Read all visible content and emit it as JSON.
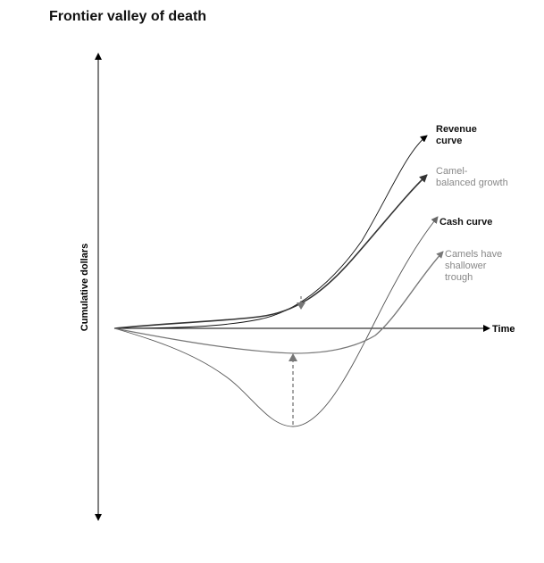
{
  "title": "Frontier valley of death",
  "axes": {
    "y_label": "Cumulative dollars",
    "x_label": "Time"
  },
  "curves": {
    "revenue": {
      "label_lines": [
        "Revenue",
        "curve"
      ],
      "color": "#111111"
    },
    "camel_growth": {
      "label_lines": [
        "Camel-",
        "balanced growth"
      ],
      "color": "#333333",
      "label_color": "#888888"
    },
    "cash": {
      "label_lines": [
        "Cash curve"
      ],
      "color": "#555555"
    },
    "camel_cash": {
      "label_lines": [
        "Camels have",
        "shallower",
        "trough"
      ],
      "color": "#777777",
      "label_color": "#888888"
    }
  },
  "colors": {
    "axis": "#000000",
    "dashed_arrow": "#777777"
  }
}
